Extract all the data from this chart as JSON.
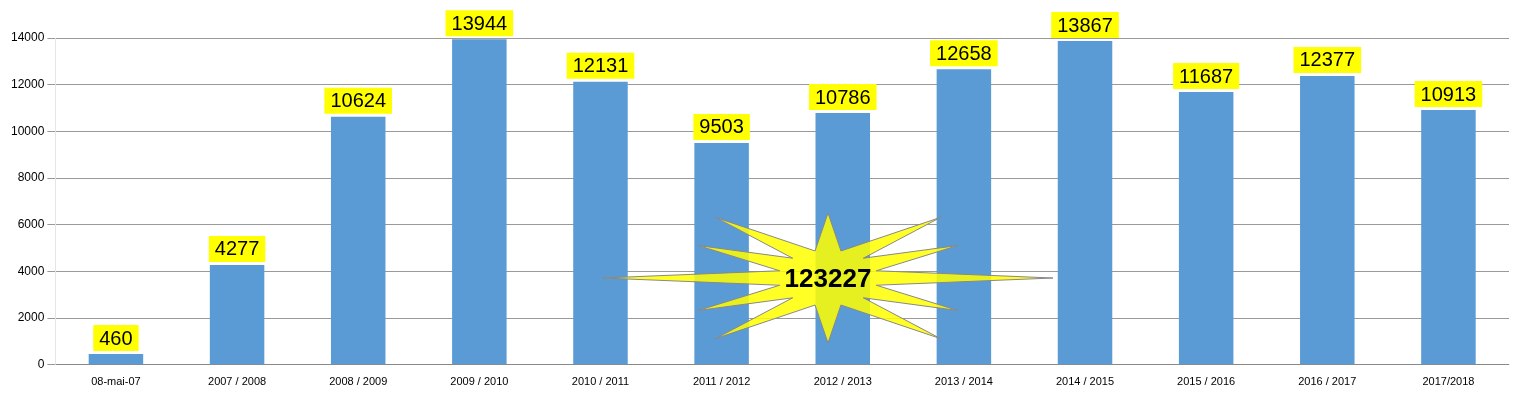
{
  "chart_data": {
    "type": "bar",
    "categories": [
      "08-mai-07",
      "2007 / 2008",
      "2008 / 2009",
      "2009 / 2010",
      "2010 / 2011",
      "2011 / 2012",
      "2012 / 2013",
      "2013 / 2014",
      "2014 / 2015",
      "2015 / 2016",
      "2016 / 2017",
      "2017/2018"
    ],
    "values": [
      460,
      4277,
      10624,
      13944,
      12131,
      9503,
      10786,
      12658,
      13867,
      11687,
      12377,
      10913
    ],
    "color": "#5b9bd5",
    "ylim": [
      0,
      14000
    ],
    "yticks": [
      0,
      2000,
      4000,
      6000,
      8000,
      10000,
      12000,
      14000
    ],
    "grid": "y",
    "data_labels": true,
    "annotations": [
      "123227"
    ]
  }
}
